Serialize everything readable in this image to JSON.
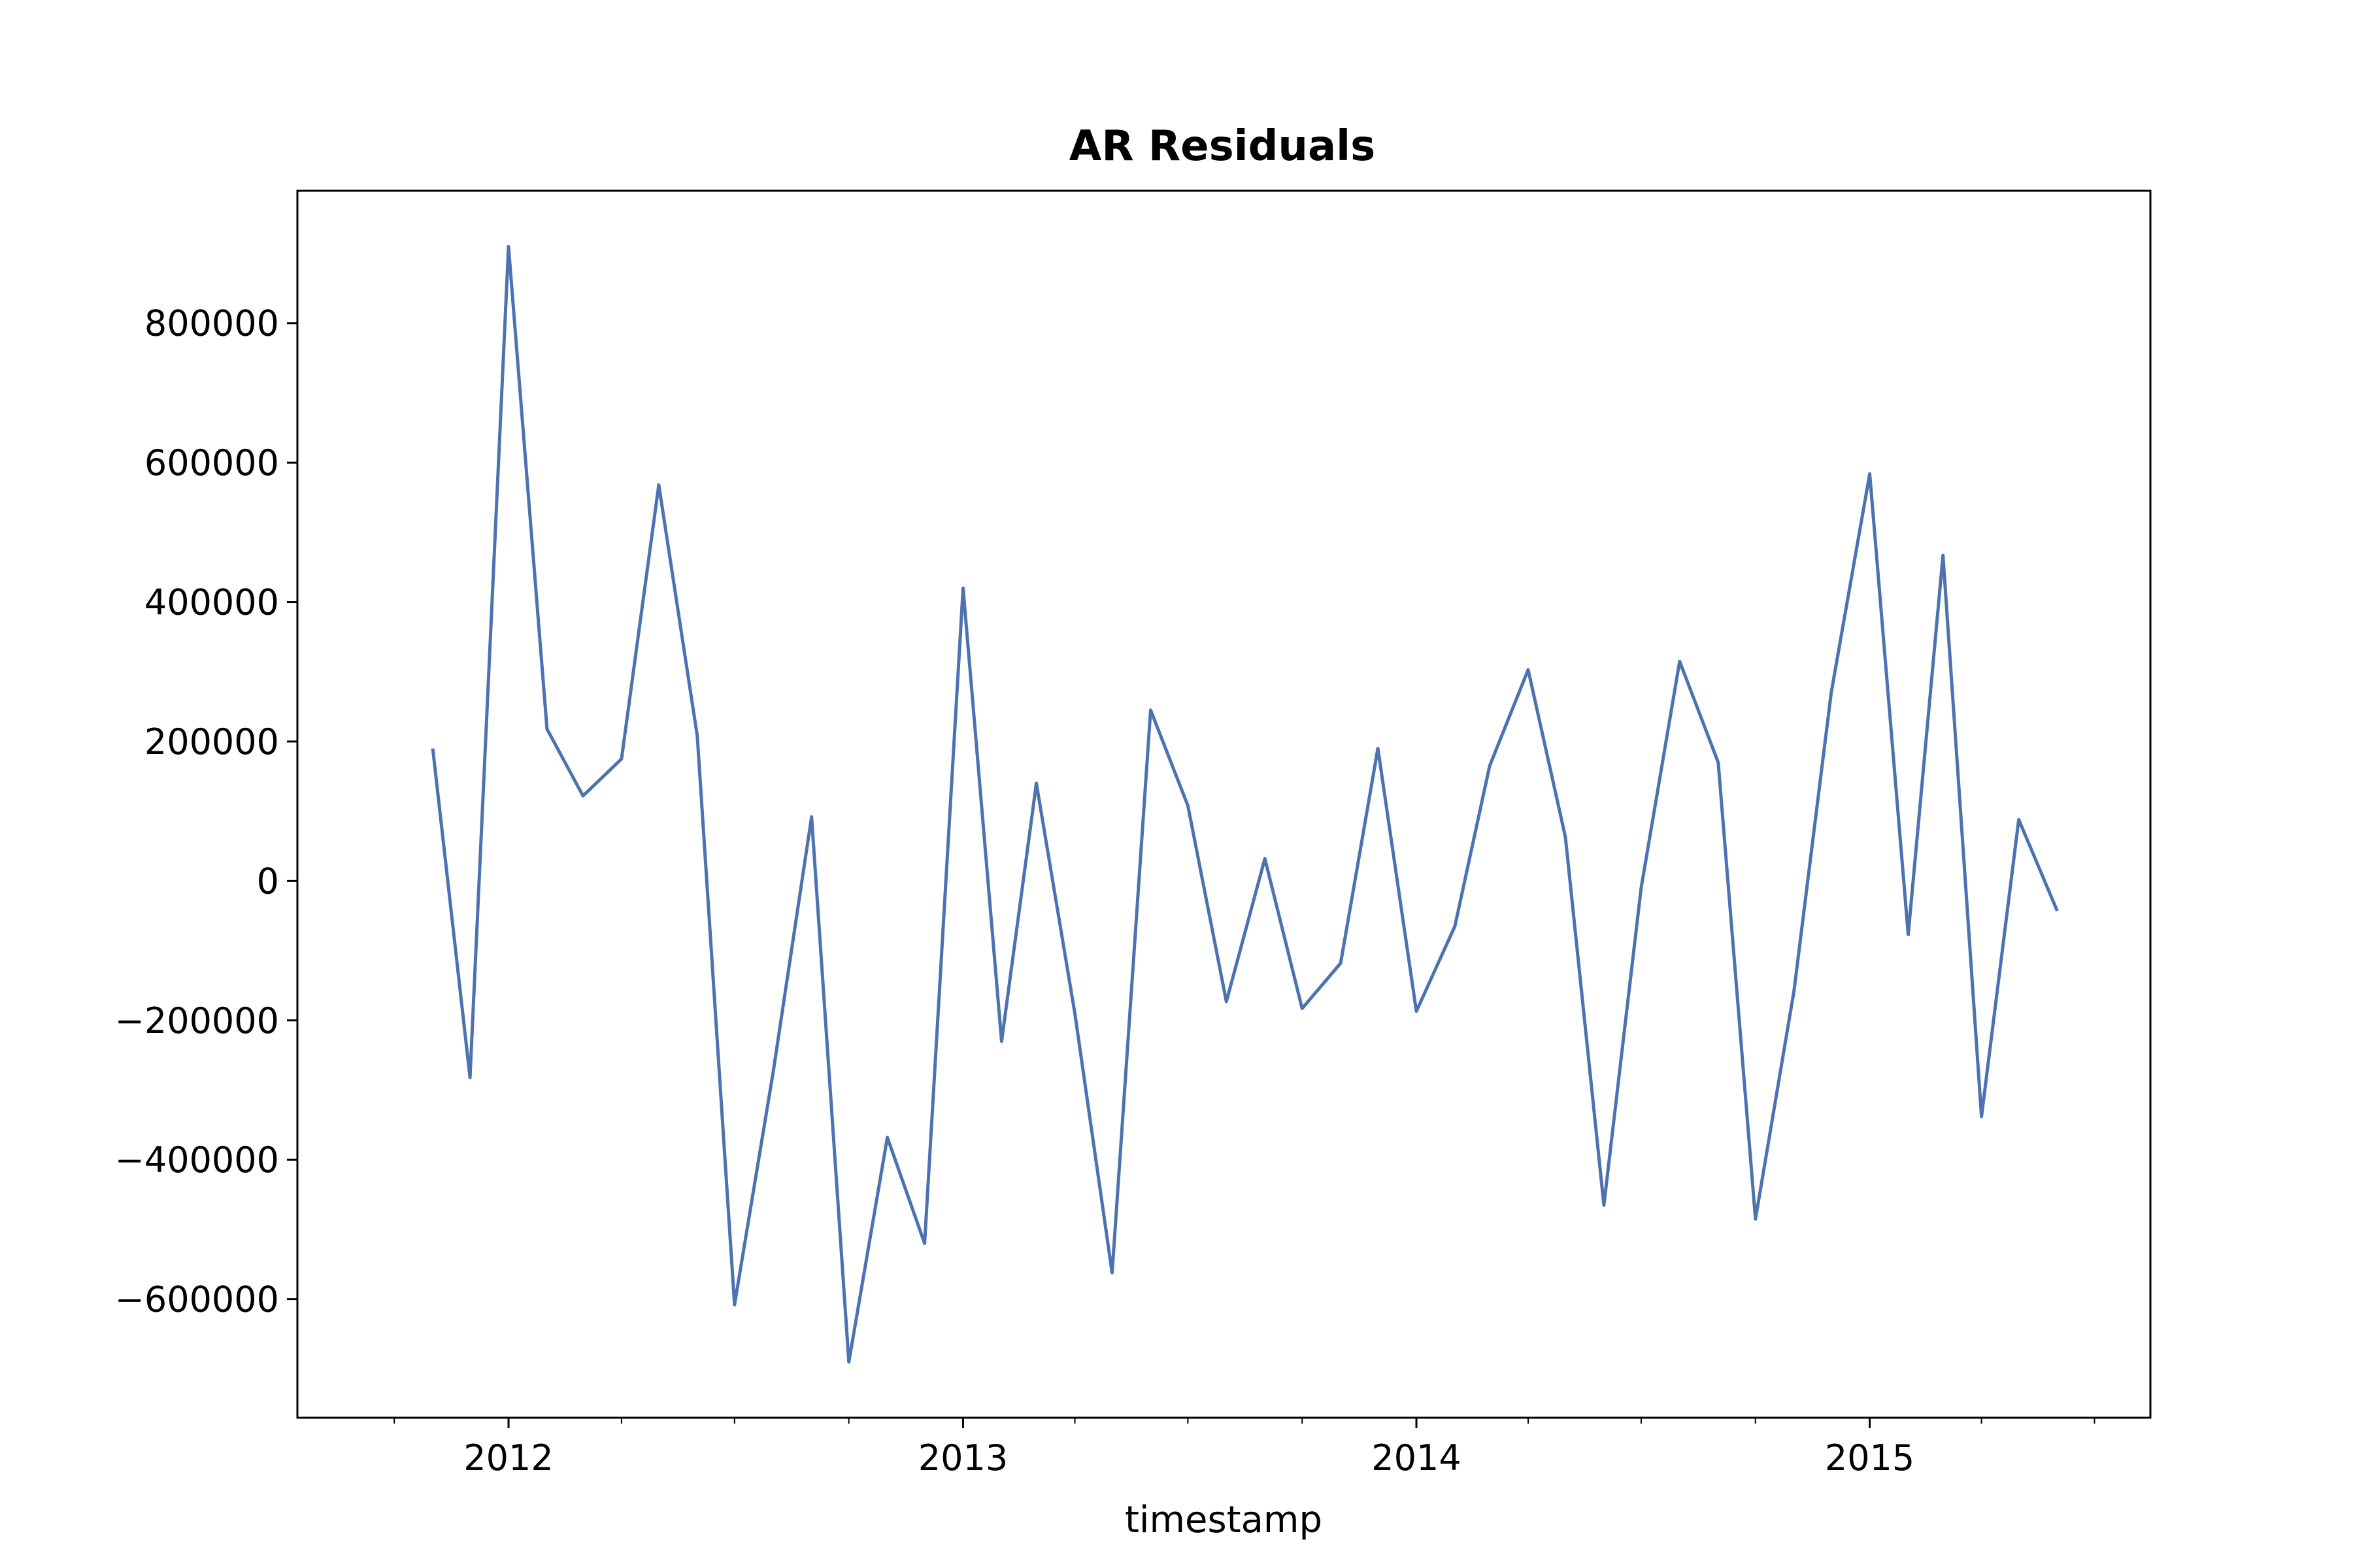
{
  "chart_data": {
    "type": "line",
    "title": "AR Residuals",
    "xlabel": "timestamp",
    "ylabel": "",
    "x_type": "date",
    "x_ticks": [
      "2012",
      "2013",
      "2014",
      "2015"
    ],
    "x_tick_values": [
      "2012-01-01",
      "2013-01-01",
      "2014-01-01",
      "2015-01-01"
    ],
    "xlim": [
      "2011-07-15",
      "2015-08-15"
    ],
    "y_ticks": [
      800000,
      600000,
      400000,
      200000,
      0,
      -200000,
      -400000,
      -600000
    ],
    "y_tick_labels": [
      "800000",
      "600000",
      "400000",
      "200000",
      "0",
      "−200000",
      "−400000",
      "−600000"
    ],
    "ylim": [
      -770000,
      990000
    ],
    "grid": false,
    "legend": "none",
    "series": [
      {
        "color": "#4c72b0",
        "x": [
          "2011-11-01",
          "2011-12-01",
          "2012-01-01",
          "2012-02-01",
          "2012-03-01",
          "2012-04-01",
          "2012-05-01",
          "2012-06-01",
          "2012-07-01",
          "2012-08-01",
          "2012-09-01",
          "2012-10-01",
          "2012-11-01",
          "2012-12-01",
          "2013-01-01",
          "2013-02-01",
          "2013-03-01",
          "2013-04-01",
          "2013-05-01",
          "2013-06-01",
          "2013-07-01",
          "2013-08-01",
          "2013-09-01",
          "2013-10-01",
          "2013-11-01",
          "2013-12-01",
          "2014-01-01",
          "2014-02-01",
          "2014-03-01",
          "2014-04-01",
          "2014-05-01",
          "2014-06-01",
          "2014-07-01",
          "2014-08-01",
          "2014-09-01",
          "2014-10-01",
          "2014-11-01",
          "2014-12-01",
          "2015-01-01",
          "2015-02-01",
          "2015-03-01",
          "2015-04-01",
          "2015-05-01",
          "2015-06-01"
        ],
        "y": [
          190000,
          -282000,
          910000,
          218000,
          122000,
          175000,
          568000,
          208000,
          -608000,
          -275000,
          92000,
          -690000,
          -368000,
          -520000,
          420000,
          -230000,
          140000,
          -190000,
          -562000,
          245000,
          108000,
          -173000,
          32000,
          -183000,
          -118000,
          190000,
          -187000,
          -65000,
          165000,
          303000,
          63000,
          -465000,
          -10000,
          315000,
          170000,
          -485000,
          -158000,
          270000,
          584000,
          -77000,
          467000,
          -338000,
          88000,
          -43000
        ]
      }
    ]
  }
}
